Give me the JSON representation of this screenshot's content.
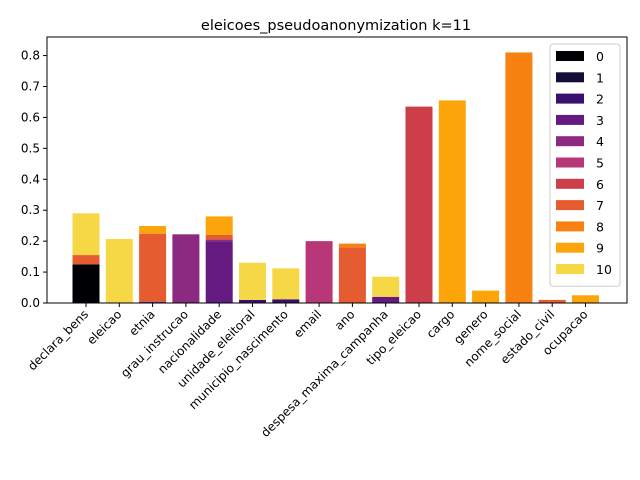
{
  "chart_data": {
    "type": "bar",
    "stacked": true,
    "title": "eleicoes_pseudoanonymization k=11",
    "xlabel": "",
    "ylabel": "",
    "ylim": [
      0,
      0.86
    ],
    "yticks": [
      0.0,
      0.1,
      0.2,
      0.3,
      0.4,
      0.5,
      0.6,
      0.7,
      0.8
    ],
    "ytick_labels": [
      "0.0",
      "0.1",
      "0.2",
      "0.3",
      "0.4",
      "0.5",
      "0.6",
      "0.7",
      "0.8"
    ],
    "grid": false,
    "legend_position": "top-right",
    "categories": [
      "declara_bens",
      "eleicao",
      "etnia",
      "grau_instrucao",
      "nacionalidade",
      "unidade_eleitoral",
      "municipio_nascimento",
      "email",
      "ano",
      "despesa_maxima_campanha",
      "tipo_eleicao",
      "cargo",
      "genero",
      "nome_social",
      "estado_civil",
      "ocupacao"
    ],
    "series": [
      {
        "name": "0",
        "color": "#000004",
        "values": [
          0.125,
          0,
          0,
          0,
          0,
          0,
          0,
          0,
          0,
          0,
          0,
          0,
          0,
          0,
          0,
          0
        ]
      },
      {
        "name": "1",
        "color": "#140e36",
        "values": [
          0,
          0,
          0.002,
          0,
          0,
          0,
          0,
          0,
          0,
          0,
          0,
          0,
          0,
          0,
          0,
          0
        ]
      },
      {
        "name": "2",
        "color": "#3b0f70",
        "values": [
          0,
          0,
          0.002,
          0,
          0,
          0.01,
          0.012,
          0,
          0,
          0,
          0,
          0,
          0,
          0,
          0,
          0
        ]
      },
      {
        "name": "3",
        "color": "#641a80",
        "values": [
          0,
          0,
          0,
          0,
          0.2,
          0,
          0,
          0,
          0,
          0.02,
          0,
          0,
          0,
          0,
          0,
          0
        ]
      },
      {
        "name": "4",
        "color": "#8c2981",
        "values": [
          0,
          0,
          0,
          0.222,
          0.005,
          0,
          0,
          0,
          0,
          0,
          0,
          0,
          0,
          0,
          0,
          0
        ]
      },
      {
        "name": "5",
        "color": "#b73779",
        "values": [
          0,
          0,
          0,
          0,
          0,
          0,
          0,
          0.2,
          0,
          0,
          0,
          0,
          0,
          0,
          0,
          0
        ]
      },
      {
        "name": "6",
        "color": "#cc3f4a",
        "values": [
          0,
          0,
          0,
          0,
          0,
          0,
          0,
          0,
          0,
          0,
          0.635,
          0,
          0,
          0,
          0,
          0
        ]
      },
      {
        "name": "7",
        "color": "#e55c30",
        "values": [
          0.03,
          0,
          0.22,
          0,
          0.015,
          0,
          0,
          0,
          0.18,
          0,
          0,
          0,
          0,
          0,
          0.01,
          0
        ]
      },
      {
        "name": "8",
        "color": "#f78212",
        "values": [
          0,
          0,
          0,
          0,
          0,
          0,
          0,
          0,
          0.012,
          0,
          0,
          0,
          0,
          0.81,
          0,
          0
        ]
      },
      {
        "name": "9",
        "color": "#fca50a",
        "values": [
          0,
          0,
          0.025,
          0,
          0.06,
          0,
          0,
          0,
          0,
          0,
          0,
          0.655,
          0.04,
          0,
          0,
          0.025
        ]
      },
      {
        "name": "10",
        "color": "#f6d746",
        "values": [
          0.135,
          0.207,
          0,
          0,
          0,
          0.12,
          0.1,
          0,
          0,
          0.065,
          0,
          0,
          0,
          0,
          0,
          0
        ]
      }
    ]
  }
}
